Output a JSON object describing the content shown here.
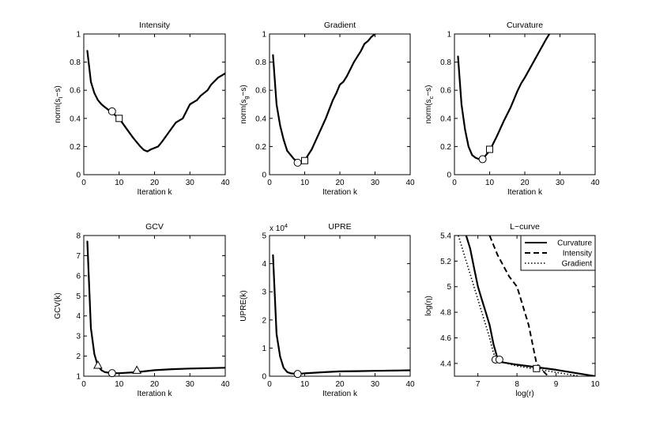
{
  "chart_data": [
    {
      "type": "line",
      "title": "Intensity",
      "xlabel": "Iteration k",
      "ylabel": "norm(s_I−s)",
      "ylabel_parts": [
        "norm(s",
        "I",
        "−s)"
      ],
      "xlim": [
        0,
        40
      ],
      "ylim": [
        0,
        1
      ],
      "xticks": [
        0,
        10,
        20,
        30,
        40
      ],
      "yticks": [
        0,
        0.2,
        0.4,
        0.6,
        0.8,
        1
      ],
      "series": [
        {
          "name": "Intensity",
          "style": "solid",
          "x": [
            1,
            2,
            3,
            4,
            5,
            6,
            7,
            8,
            9,
            10,
            12,
            14,
            16,
            17,
            18,
            19,
            20,
            21,
            22,
            24,
            26,
            28,
            29,
            30,
            32,
            33,
            35,
            36,
            38,
            40
          ],
          "y": [
            0.88,
            0.66,
            0.58,
            0.53,
            0.5,
            0.48,
            0.46,
            0.44,
            0.42,
            0.4,
            0.33,
            0.26,
            0.2,
            0.175,
            0.165,
            0.18,
            0.19,
            0.2,
            0.23,
            0.3,
            0.37,
            0.4,
            0.45,
            0.5,
            0.53,
            0.56,
            0.6,
            0.64,
            0.69,
            0.72
          ]
        }
      ],
      "markers": [
        {
          "shape": "circle",
          "x": 8,
          "y": 0.45
        },
        {
          "shape": "square",
          "x": 10,
          "y": 0.4
        }
      ]
    },
    {
      "type": "line",
      "title": "Gradient",
      "xlabel": "Iteration k",
      "ylabel": "norm(s_g−s)",
      "ylabel_parts": [
        "norm(s",
        "g",
        "−s)"
      ],
      "xlim": [
        0,
        40
      ],
      "ylim": [
        0,
        1
      ],
      "xticks": [
        0,
        10,
        20,
        30,
        40
      ],
      "yticks": [
        0,
        0.2,
        0.4,
        0.6,
        0.8,
        1
      ],
      "series": [
        {
          "name": "Gradient",
          "style": "solid",
          "x": [
            1,
            2,
            3,
            4,
            5,
            6,
            7,
            8,
            9,
            10,
            11,
            12,
            14,
            16,
            18,
            19,
            20,
            21,
            22,
            24,
            26,
            27,
            28,
            29,
            30
          ],
          "y": [
            0.85,
            0.5,
            0.35,
            0.25,
            0.17,
            0.14,
            0.11,
            0.09,
            0.09,
            0.1,
            0.14,
            0.18,
            0.29,
            0.4,
            0.53,
            0.58,
            0.64,
            0.66,
            0.7,
            0.8,
            0.88,
            0.93,
            0.95,
            0.98,
            1.0
          ]
        }
      ],
      "markers": [
        {
          "shape": "circle",
          "x": 8,
          "y": 0.085
        },
        {
          "shape": "square",
          "x": 10,
          "y": 0.1
        }
      ]
    },
    {
      "type": "line",
      "title": "Curvature",
      "xlabel": "Iteration k",
      "ylabel": "norm(s_c−s)",
      "ylabel_parts": [
        "norm(s",
        "c",
        "−s)"
      ],
      "xlim": [
        0,
        40
      ],
      "ylim": [
        0,
        1
      ],
      "xticks": [
        0,
        10,
        20,
        30,
        40
      ],
      "yticks": [
        0,
        0.2,
        0.4,
        0.6,
        0.8,
        1
      ],
      "series": [
        {
          "name": "Curvature",
          "style": "solid",
          "x": [
            1,
            2,
            3,
            4,
            5,
            6,
            7,
            8,
            9,
            10,
            11,
            12,
            14,
            16,
            18,
            19,
            20,
            22,
            24,
            26,
            27
          ],
          "y": [
            0.84,
            0.5,
            0.32,
            0.2,
            0.14,
            0.12,
            0.11,
            0.11,
            0.14,
            0.17,
            0.22,
            0.27,
            0.38,
            0.48,
            0.6,
            0.65,
            0.69,
            0.78,
            0.87,
            0.96,
            1.0
          ]
        }
      ],
      "markers": [
        {
          "shape": "circle",
          "x": 8,
          "y": 0.11
        },
        {
          "shape": "square",
          "x": 10,
          "y": 0.18
        }
      ]
    },
    {
      "type": "line",
      "title": "GCV",
      "xlabel": "Iteration k",
      "ylabel": "GCV(k)",
      "xlim": [
        0,
        40
      ],
      "ylim": [
        1,
        8
      ],
      "xticks": [
        0,
        10,
        20,
        30,
        40
      ],
      "yticks": [
        1,
        2,
        3,
        4,
        5,
        6,
        7,
        8
      ],
      "series": [
        {
          "name": "GCV",
          "style": "solid",
          "x": [
            1,
            2,
            3,
            4,
            5,
            6,
            8,
            10,
            15,
            20,
            25,
            30,
            35,
            40
          ],
          "y": [
            7.7,
            3.4,
            2.1,
            1.5,
            1.3,
            1.2,
            1.15,
            1.15,
            1.2,
            1.3,
            1.35,
            1.38,
            1.4,
            1.42
          ]
        }
      ],
      "markers": [
        {
          "shape": "triangle",
          "x": 4,
          "y": 1.55
        },
        {
          "shape": "circle",
          "x": 8,
          "y": 1.15
        },
        {
          "shape": "triangle",
          "x": 15,
          "y": 1.3
        }
      ]
    },
    {
      "type": "line",
      "title": "UPRE",
      "xlabel": "Iteration k",
      "ylabel": "UPRE(k)",
      "exponent_label": "x 10",
      "exponent_power": "4",
      "xlim": [
        0,
        40
      ],
      "ylim": [
        0,
        5
      ],
      "xticks": [
        0,
        10,
        20,
        30,
        40
      ],
      "yticks": [
        0,
        1,
        2,
        3,
        4,
        5
      ],
      "series": [
        {
          "name": "UPRE",
          "style": "solid",
          "x": [
            1,
            2,
            3,
            4,
            5,
            6,
            8,
            10,
            15,
            20,
            25,
            30,
            35,
            40
          ],
          "y": [
            4.3,
            1.5,
            0.7,
            0.3,
            0.15,
            0.1,
            0.08,
            0.1,
            0.14,
            0.17,
            0.18,
            0.19,
            0.2,
            0.21
          ]
        }
      ],
      "markers": [
        {
          "shape": "circle",
          "x": 8,
          "y": 0.08
        }
      ]
    },
    {
      "type": "line",
      "title": "L−curve",
      "xlabel": "log(r)",
      "ylabel": "log(η)",
      "xlim": [
        6.4,
        10
      ],
      "ylim": [
        4.3,
        5.4
      ],
      "xticks": [
        7,
        8,
        9,
        10
      ],
      "yticks": [
        4.4,
        4.6,
        4.8,
        5,
        5.2,
        5.4
      ],
      "legend": {
        "position": "top-right",
        "entries": [
          "Curvature",
          "Intensity",
          "Gradient"
        ]
      },
      "series": [
        {
          "name": "Curvature",
          "style": "solid",
          "x": [
            6.7,
            6.8,
            6.9,
            7.0,
            7.1,
            7.2,
            7.3,
            7.4,
            7.5,
            7.6,
            8.0,
            9.0,
            10.0
          ],
          "y": [
            5.4,
            5.3,
            5.15,
            5.0,
            4.9,
            4.8,
            4.7,
            4.55,
            4.44,
            4.41,
            4.39,
            4.35,
            4.3
          ]
        },
        {
          "name": "Intensity",
          "style": "dashed",
          "x": [
            7.3,
            7.5,
            7.8,
            8.0,
            8.1,
            8.3,
            8.5,
            8.7,
            8.8
          ],
          "y": [
            5.4,
            5.25,
            5.08,
            5.0,
            4.9,
            4.7,
            4.4,
            4.33,
            4.3
          ]
        },
        {
          "name": "Gradient",
          "style": "dotted",
          "x": [
            6.5,
            6.6,
            6.7,
            6.8,
            6.9,
            7.0,
            7.1,
            7.2,
            7.3,
            7.4,
            7.5,
            8.0,
            9.0,
            9.6
          ],
          "y": [
            5.4,
            5.3,
            5.2,
            5.1,
            5.0,
            4.9,
            4.8,
            4.7,
            4.6,
            4.48,
            4.42,
            4.38,
            4.33,
            4.3
          ]
        }
      ],
      "markers": [
        {
          "shape": "circle",
          "x": 7.45,
          "y": 4.43
        },
        {
          "shape": "circle",
          "x": 7.55,
          "y": 4.43
        },
        {
          "shape": "square",
          "x": 8.5,
          "y": 4.36
        }
      ]
    }
  ]
}
